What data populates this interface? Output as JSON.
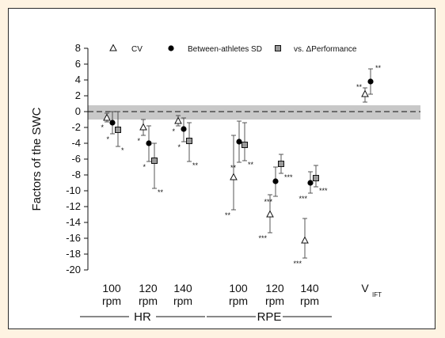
{
  "chart_data": {
    "type": "scatter",
    "ylabel": "Factors of the SWC",
    "ylim": [
      -20,
      8
    ],
    "yticks": [
      8,
      6,
      4,
      2,
      0,
      -2,
      -4,
      -6,
      -8,
      -10,
      -12,
      -14,
      -16,
      -18,
      -20
    ],
    "swc_band": [
      -1,
      0.8
    ],
    "reference_line": 0,
    "legend_position": "top",
    "categories": [
      {
        "line1": "100",
        "line2": "rpm"
      },
      {
        "line1": "120",
        "line2": "rpm"
      },
      {
        "line1": "140",
        "line2": "rpm"
      },
      {
        "line1": "100",
        "line2": "rpm"
      },
      {
        "line1": "120",
        "line2": "rpm"
      },
      {
        "line1": "140",
        "line2": "rpm"
      },
      {
        "line1": "V",
        "sub": "IFT"
      }
    ],
    "groups": [
      {
        "label": "HR",
        "from": 0,
        "to": 2
      },
      {
        "label": "RPE",
        "from": 3,
        "to": 5
      }
    ],
    "series": [
      {
        "name": "CV",
        "marker": "triangle-open",
        "values": [
          -0.8,
          -2.0,
          -1.2,
          -8.3,
          -13.0,
          -16.3,
          2.2
        ],
        "lower": [
          -1.3,
          -3.0,
          -1.8,
          -12.4,
          -15.3,
          -18.5,
          1.2
        ],
        "upper": [
          -0.2,
          -1.0,
          -0.5,
          -3.0,
          -10.5,
          -13.5,
          3.0
        ],
        "labels": [
          "*",
          "*",
          "*",
          "**",
          "***",
          "***",
          "**"
        ]
      },
      {
        "name": "Between-athletes SD",
        "marker": "circle-filled",
        "values": [
          -1.4,
          -4.0,
          -2.2,
          -3.8,
          -8.8,
          -9.0,
          3.8
        ],
        "lower": [
          -2.8,
          -6.3,
          -3.8,
          -6.4,
          -10.7,
          -10.3,
          2.2
        ],
        "upper": [
          0.0,
          -1.8,
          -0.8,
          -1.2,
          -7.0,
          -7.6,
          5.4
        ],
        "labels": [
          "*",
          "*",
          "*",
          "**",
          "***",
          "***",
          "**"
        ]
      },
      {
        "name": "vs. ΔPerformance",
        "marker": "square-filled",
        "values": [
          -2.3,
          -6.2,
          -3.7,
          -4.2,
          -6.6,
          -8.4,
          null
        ],
        "lower": [
          -4.4,
          -9.7,
          -6.3,
          -6.2,
          -7.8,
          -9.5,
          null
        ],
        "upper": [
          0.0,
          -4.0,
          -1.4,
          -1.4,
          -5.4,
          -6.8,
          null
        ],
        "labels": [
          "*",
          "**",
          "**",
          "**",
          "***",
          "***",
          null
        ]
      }
    ]
  }
}
